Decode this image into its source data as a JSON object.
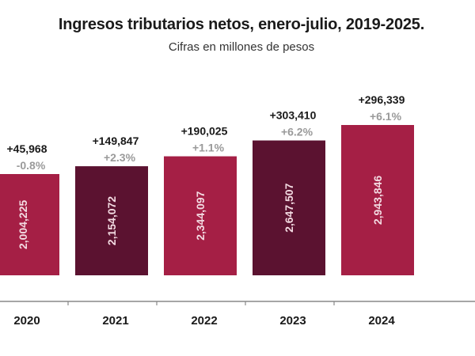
{
  "chart_data": {
    "type": "bar",
    "title": "Ingresos tributarios netos, enero-julio, 2019-2025.",
    "subtitle": "Cifras en millones de pesos",
    "xlabel": "",
    "ylabel": "",
    "categories": [
      "2020",
      "2021",
      "2022",
      "2023",
      "2024"
    ],
    "values": [
      2004225,
      2154072,
      2344097,
      2647507,
      2943846
    ],
    "value_labels": [
      "2,004,225",
      "2,154,072",
      "2,344,097",
      "2,647,507",
      "2,943,846"
    ],
    "annual_change_abs": [
      "+45,968",
      "+149,847",
      "+190,025",
      "+303,410",
      "+296,339"
    ],
    "annual_change_pct": [
      "-0.8%",
      "+2.3%",
      "+1.1%",
      "+6.2%",
      "+6.1%"
    ],
    "bar_colors": [
      "#a51f45",
      "#5b1230",
      "#a51f45",
      "#5b1230",
      "#a51f45"
    ],
    "grid": false,
    "legend": "none"
  }
}
